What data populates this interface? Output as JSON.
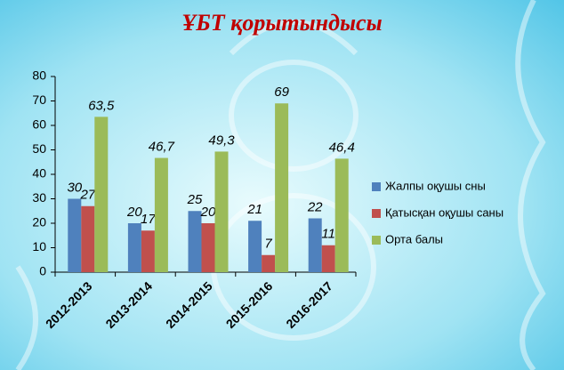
{
  "chart_data": {
    "type": "bar",
    "title": "ҰБТ қорытындысы",
    "categories": [
      "2012-2013",
      "2013-2014",
      "2014-2015",
      "2015-2016",
      "2016-2017"
    ],
    "series": [
      {
        "name": "Жалпы оқушы сны",
        "color": "#4f81bd",
        "values": [
          30,
          20,
          25,
          21,
          22
        ]
      },
      {
        "name": "Қатысқан оқушы саны",
        "color": "#c0504d",
        "values": [
          27,
          17,
          20,
          7,
          11
        ]
      },
      {
        "name": "Орта балы",
        "color": "#9bbb59",
        "values": [
          63.5,
          46.7,
          49.3,
          69,
          46.4
        ],
        "value_labels": [
          "63,5",
          "46,7",
          "49,3",
          "69",
          "46,4"
        ]
      }
    ],
    "ylim": [
      0,
      80
    ],
    "yticks": [
      0,
      10,
      20,
      30,
      40,
      50,
      60,
      70,
      80
    ],
    "legend": "right"
  }
}
